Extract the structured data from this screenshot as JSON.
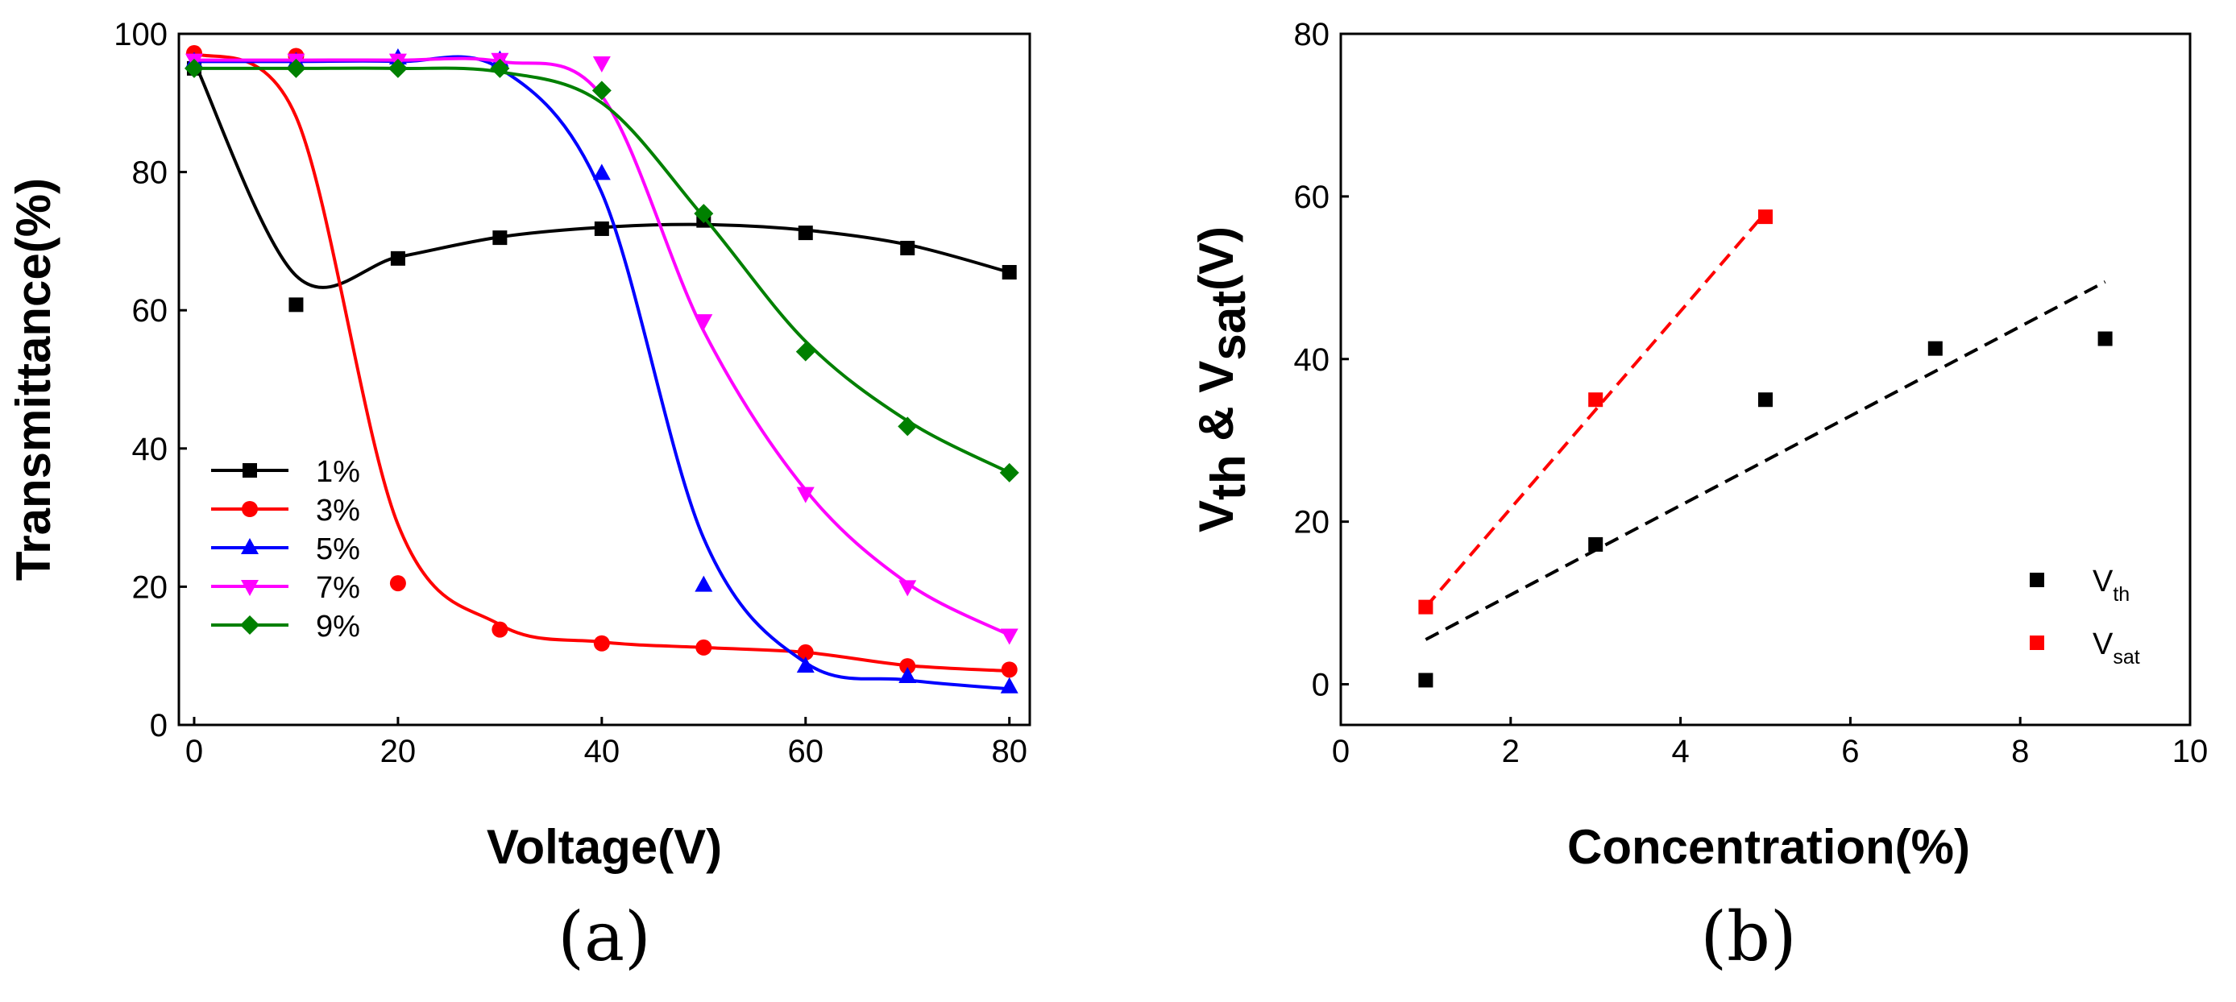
{
  "chart_data": [
    {
      "type": "line",
      "panel_label": "(a)",
      "title": "",
      "xlabel": "Voltage(V)",
      "ylabel": "Transmittance(%)",
      "xlim": [
        -1.5,
        82
      ],
      "ylim": [
        0,
        100
      ],
      "xticks": [
        0,
        20,
        40,
        60,
        80
      ],
      "yticks": [
        0,
        20,
        40,
        60,
        80,
        100
      ],
      "grid": false,
      "legend": "lower-left",
      "series": [
        {
          "name": "1%",
          "color": "#000000",
          "marker": "square",
          "x": [
            0,
            10,
            20,
            30,
            40,
            50,
            60,
            70,
            80
          ],
          "y": [
            95,
            60.8,
            67.5,
            70.5,
            71.8,
            73,
            71.2,
            69,
            65.5
          ],
          "fit_y": [
            96,
            65,
            67.7,
            70.6,
            72,
            72.4,
            71.6,
            69.5,
            65.5
          ]
        },
        {
          "name": "3%",
          "color": "#ff0000",
          "marker": "circle",
          "x": [
            0,
            10,
            20,
            30,
            40,
            50,
            60,
            70,
            80
          ],
          "y": [
            97.2,
            96.8,
            20.5,
            13.8,
            11.8,
            11.2,
            10.5,
            8.5,
            8
          ],
          "fit_y": [
            97.3,
            88,
            29,
            14.5,
            12,
            11.2,
            10.5,
            8.6,
            7.8
          ]
        },
        {
          "name": "5%",
          "color": "#0000ff",
          "marker": "triangle-up",
          "x": [
            0,
            10,
            20,
            30,
            40,
            50,
            60,
            70,
            80
          ],
          "y": [
            96,
            96,
            96.5,
            96.2,
            79.8,
            20.2,
            8.5,
            7,
            5.5
          ],
          "fit_y": [
            96,
            96,
            96,
            95,
            77,
            27,
            9,
            6.5,
            5.2
          ]
        },
        {
          "name": "7%",
          "color": "#ff00ff",
          "marker": "triangle-down",
          "x": [
            0,
            10,
            20,
            30,
            40,
            50,
            60,
            70,
            80
          ],
          "y": [
            96.2,
            96.2,
            96.2,
            96.3,
            95.8,
            58.5,
            33.5,
            20,
            13
          ],
          "fit_y": [
            96.2,
            96.2,
            96.2,
            96,
            91,
            57,
            34,
            20.5,
            13
          ]
        },
        {
          "name": "9%",
          "color": "#008000",
          "marker": "diamond",
          "x": [
            0,
            10,
            20,
            30,
            40,
            50,
            60,
            70,
            80
          ],
          "y": [
            95,
            95,
            95,
            95,
            91.8,
            74,
            54,
            43.2,
            36.5
          ],
          "fit_y": [
            95,
            95,
            95,
            94.5,
            90,
            73.5,
            55.5,
            44,
            36.5
          ]
        }
      ]
    },
    {
      "type": "scatter",
      "panel_label": "(b)",
      "title": "",
      "xlabel": "Concentration(%)",
      "ylabel_parts": [
        "V",
        "th",
        " & V",
        "sat",
        "(V)"
      ],
      "xlim": [
        0,
        10
      ],
      "ylim": [
        -5,
        80
      ],
      "xticks": [
        0,
        2,
        4,
        6,
        8,
        10
      ],
      "yticks": [
        0,
        20,
        40,
        60,
        80
      ],
      "grid": false,
      "legend": "lower-right",
      "series": [
        {
          "name": "V",
          "name_sub": "th",
          "color": "#000000",
          "marker": "square",
          "x": [
            1,
            3,
            5,
            7,
            9
          ],
          "y": [
            0.5,
            17.2,
            35,
            41.3,
            42.5
          ],
          "trendline": {
            "x": [
              1,
              9
            ],
            "y": [
              5.5,
              49.5
            ]
          }
        },
        {
          "name": "V",
          "name_sub": "sat",
          "color": "#ff0000",
          "marker": "square",
          "x": [
            1,
            3,
            5
          ],
          "y": [
            9.5,
            35,
            57.5
          ],
          "trendline": {
            "x": [
              1,
              5
            ],
            "y": [
              9.5,
              58
            ]
          }
        }
      ]
    }
  ]
}
